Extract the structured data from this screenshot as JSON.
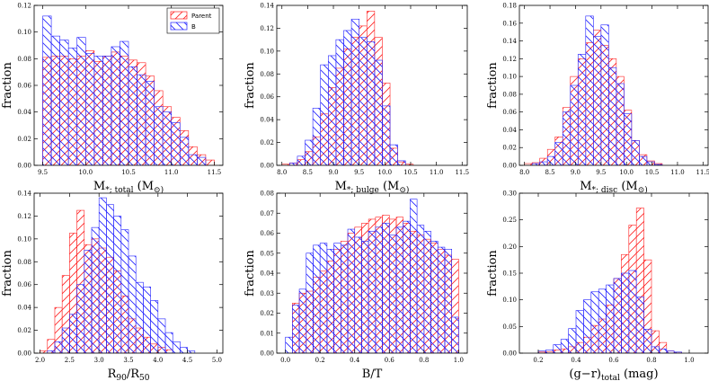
{
  "figure": {
    "legend": [
      {
        "name": "Parent",
        "color": "#ff2020",
        "hatch": "diag-up"
      },
      {
        "name": "B",
        "color": "#2020ff",
        "hatch": "diag-down"
      }
    ]
  },
  "chart_data": [
    {
      "type": "bar",
      "title": "",
      "xlabel_main": "M",
      "xlabel_sub": "*; total",
      "xlabel_unit": " (M",
      "xlabel_end": "⊙)",
      "ylabel": "fraction",
      "xlim": [
        9.4,
        11.6
      ],
      "ylim": [
        0,
        0.12
      ],
      "xticks": [
        "9.5",
        "10.0",
        "10.5",
        "11.0",
        "11.5"
      ],
      "xtick_values": [
        9.5,
        10.0,
        10.5,
        11.0,
        11.5
      ],
      "yticks": [
        "0.00",
        "0.02",
        "0.04",
        "0.06",
        "0.08",
        "0.10",
        "0.12"
      ],
      "ytick_values": [
        0,
        0.02,
        0.04,
        0.06,
        0.08,
        0.1,
        0.12
      ],
      "bin_start": 9.5,
      "bin_width": 0.1,
      "legend_shown": true,
      "series": [
        {
          "name": "Parent",
          "values": [
            0.081,
            0.082,
            0.082,
            0.08,
            0.082,
            0.086,
            0.078,
            0.082,
            0.085,
            0.082,
            0.079,
            0.077,
            0.067,
            0.056,
            0.044,
            0.036,
            0.026,
            0.014,
            0.008,
            0.004
          ]
        },
        {
          "name": "B",
          "values": [
            0.112,
            0.097,
            0.094,
            0.088,
            0.096,
            0.084,
            0.082,
            0.082,
            0.089,
            0.093,
            0.074,
            0.068,
            0.063,
            0.044,
            0.04,
            0.032,
            0.021,
            0.008,
            0.006,
            0.0
          ]
        }
      ]
    },
    {
      "type": "bar",
      "xlabel_main": "M",
      "xlabel_sub": "*; bulge",
      "xlabel_unit": " (M",
      "xlabel_end": "⊙)",
      "ylabel": "fraction",
      "xlim": [
        7.9,
        11.6
      ],
      "ylim": [
        0,
        0.14
      ],
      "xticks": [
        "8.0",
        "8.5",
        "9.0",
        "9.5",
        "10.0",
        "10.5",
        "11.0",
        "11.5"
      ],
      "xtick_values": [
        8.0,
        8.5,
        9.0,
        9.5,
        10.0,
        10.5,
        11.0,
        11.5
      ],
      "yticks": [
        "0.00",
        "0.02",
        "0.04",
        "0.06",
        "0.08",
        "0.10",
        "0.12",
        "0.14"
      ],
      "ytick_values": [
        0,
        0.02,
        0.04,
        0.06,
        0.08,
        0.1,
        0.12,
        0.14
      ],
      "bin_start": 8.0,
      "bin_width": 0.15,
      "legend_shown": false,
      "series": [
        {
          "name": "Parent",
          "values": [
            0.001,
            0.002,
            0.005,
            0.012,
            0.025,
            0.045,
            0.068,
            0.085,
            0.102,
            0.112,
            0.122,
            0.135,
            0.112,
            0.072,
            0.015,
            0.003,
            0.001
          ]
        },
        {
          "name": "B",
          "values": [
            0.0,
            0.002,
            0.008,
            0.022,
            0.05,
            0.088,
            0.096,
            0.11,
            0.118,
            0.128,
            0.112,
            0.108,
            0.092,
            0.052,
            0.018,
            0.004,
            0.0
          ]
        }
      ]
    },
    {
      "type": "bar",
      "xlabel_main": "M",
      "xlabel_sub": "*; disc",
      "xlabel_unit": " (M",
      "xlabel_end": "⊙)",
      "ylabel": "fraction",
      "xlim": [
        7.9,
        11.6
      ],
      "ylim": [
        0,
        0.18
      ],
      "xticks": [
        "8.0",
        "8.5",
        "9.0",
        "9.5",
        "10.0",
        "10.5",
        "11.0",
        "11.5"
      ],
      "xtick_values": [
        8.0,
        8.5,
        9.0,
        9.5,
        10.0,
        10.5,
        11.0,
        11.5
      ],
      "yticks": [
        "0.00",
        "0.02",
        "0.04",
        "0.06",
        "0.08",
        "0.10",
        "0.12",
        "0.14",
        "0.16",
        "0.18"
      ],
      "ytick_values": [
        0,
        0.02,
        0.04,
        0.06,
        0.08,
        0.1,
        0.12,
        0.14,
        0.16,
        0.18
      ],
      "bin_start": 8.0,
      "bin_width": 0.15,
      "legend_shown": false,
      "series": [
        {
          "name": "Parent",
          "values": [
            0.002,
            0.003,
            0.008,
            0.018,
            0.032,
            0.065,
            0.1,
            0.12,
            0.138,
            0.152,
            0.135,
            0.12,
            0.1,
            0.062,
            0.028,
            0.012,
            0.005,
            0.002
          ]
        },
        {
          "name": "B",
          "values": [
            0.0,
            0.002,
            0.004,
            0.01,
            0.026,
            0.06,
            0.09,
            0.125,
            0.168,
            0.145,
            0.158,
            0.11,
            0.092,
            0.058,
            0.028,
            0.01,
            0.004,
            0.001
          ]
        }
      ]
    },
    {
      "type": "bar",
      "xlabel_main": "R",
      "xlabel_sub": "90",
      "xlabel_unit": "/R",
      "xlabel_end": "50",
      "xlabel_end_is_sub": true,
      "ylabel": "fraction",
      "xlim": [
        1.9,
        5.1
      ],
      "ylim": [
        0,
        0.14
      ],
      "xticks": [
        "2.0",
        "2.5",
        "3.0",
        "3.5",
        "4.0",
        "4.5",
        "5.0"
      ],
      "xtick_values": [
        2.0,
        2.5,
        3.0,
        3.5,
        4.0,
        4.5,
        5.0
      ],
      "yticks": [
        "0.00",
        "0.02",
        "0.04",
        "0.06",
        "0.08",
        "0.10",
        "0.12",
        "0.14"
      ],
      "ytick_values": [
        0,
        0.02,
        0.04,
        0.06,
        0.08,
        0.1,
        0.12,
        0.14
      ],
      "bin_start": 2.0,
      "bin_width": 0.125,
      "legend_shown": false,
      "series": [
        {
          "name": "Parent",
          "values": [
            0.002,
            0.012,
            0.04,
            0.068,
            0.105,
            0.125,
            0.095,
            0.1,
            0.092,
            0.084,
            0.072,
            0.05,
            0.03,
            0.022,
            0.014,
            0.008,
            0.005,
            0.003,
            0.0,
            0.0,
            0.0,
            0.0,
            0.0,
            0.0
          ]
        },
        {
          "name": "B",
          "values": [
            0.0,
            0.002,
            0.01,
            0.022,
            0.034,
            0.06,
            0.09,
            0.11,
            0.136,
            0.13,
            0.12,
            0.108,
            0.085,
            0.062,
            0.058,
            0.046,
            0.03,
            0.018,
            0.01,
            0.005,
            0.002,
            0.0,
            0.0,
            0.0
          ]
        }
      ]
    },
    {
      "type": "bar",
      "xlabel_main": "B/T",
      "xlabel_sub": "",
      "xlabel_unit": "",
      "xlabel_end": "",
      "ylabel": "fraction",
      "xlim": [
        -0.05,
        1.05
      ],
      "ylim": [
        0,
        0.08
      ],
      "xticks": [
        "0.0",
        "0.2",
        "0.4",
        "0.6",
        "0.8",
        "1.0"
      ],
      "xtick_values": [
        0.0,
        0.2,
        0.4,
        0.6,
        0.8,
        1.0
      ],
      "yticks": [
        "0.00",
        "0.01",
        "0.02",
        "0.03",
        "0.04",
        "0.05",
        "0.06",
        "0.07",
        "0.08"
      ],
      "ytick_values": [
        0,
        0.01,
        0.02,
        0.03,
        0.04,
        0.05,
        0.06,
        0.07,
        0.08
      ],
      "bin_start": 0.0,
      "bin_width": 0.04,
      "legend_shown": false,
      "series": [
        {
          "name": "Parent",
          "values": [
            0.0,
            0.025,
            0.03,
            0.031,
            0.038,
            0.041,
            0.046,
            0.052,
            0.056,
            0.06,
            0.063,
            0.065,
            0.067,
            0.068,
            0.069,
            0.067,
            0.068,
            0.065,
            0.061,
            0.059,
            0.057,
            0.055,
            0.052,
            0.049,
            0.047
          ]
        },
        {
          "name": "B",
          "values": [
            0.008,
            0.024,
            0.032,
            0.05,
            0.054,
            0.055,
            0.052,
            0.055,
            0.054,
            0.062,
            0.058,
            0.056,
            0.061,
            0.063,
            0.065,
            0.059,
            0.063,
            0.066,
            0.077,
            0.064,
            0.061,
            0.056,
            0.053,
            0.052,
            0.018
          ]
        }
      ]
    },
    {
      "type": "bar",
      "xlabel_main": "(g−r)",
      "xlabel_sub": "total",
      "xlabel_unit": " (mag)",
      "xlabel_end": "",
      "ylabel": "fraction",
      "xlim": [
        0.1,
        1.1
      ],
      "ylim": [
        0,
        0.3
      ],
      "xticks": [
        "0.2",
        "0.4",
        "0.6",
        "0.8",
        "1.0"
      ],
      "xtick_values": [
        0.2,
        0.4,
        0.6,
        0.8,
        1.0
      ],
      "yticks": [
        "0.00",
        "0.05",
        "0.10",
        "0.15",
        "0.20",
        "0.25",
        "0.30"
      ],
      "ytick_values": [
        0,
        0.05,
        0.1,
        0.15,
        0.2,
        0.25,
        0.3
      ],
      "bin_start": 0.2,
      "bin_width": 0.04,
      "legend_shown": false,
      "series": [
        {
          "name": "Parent",
          "values": [
            0.002,
            0.003,
            0.006,
            0.008,
            0.012,
            0.02,
            0.03,
            0.052,
            0.064,
            0.09,
            0.14,
            0.185,
            0.24,
            0.272,
            0.175,
            0.042,
            0.02,
            0.004,
            0.002,
            0.0,
            0.0,
            0.0
          ]
        },
        {
          "name": "B",
          "values": [
            0.004,
            0.006,
            0.016,
            0.026,
            0.046,
            0.08,
            0.1,
            0.115,
            0.12,
            0.128,
            0.14,
            0.15,
            0.155,
            0.105,
            0.045,
            0.012,
            0.008,
            0.004,
            0.002,
            0.0,
            0.0,
            0.0
          ]
        }
      ]
    }
  ]
}
